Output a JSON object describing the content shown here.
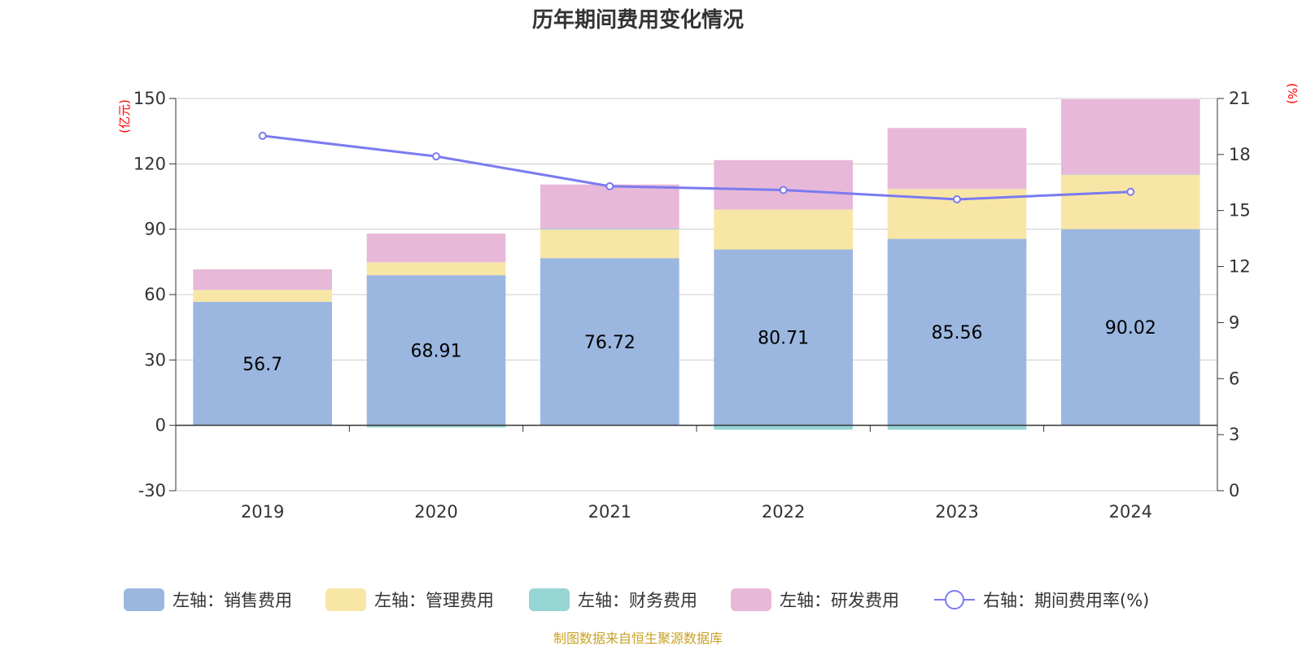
{
  "chart_data": {
    "type": "bar",
    "stacked": true,
    "title": "历年期间费用变化情况",
    "categories": [
      "2019",
      "2020",
      "2021",
      "2022",
      "2023",
      "2024"
    ],
    "series": [
      {
        "name": "左轴：销售费用",
        "axis": "left",
        "color": "#9bb7e0",
        "values": [
          56.7,
          68.91,
          76.72,
          80.71,
          85.56,
          90.02
        ],
        "show_labels": true
      },
      {
        "name": "左轴：管理费用",
        "axis": "left",
        "color": "#f8e6a6",
        "values": [
          5.4,
          5.9,
          13.1,
          18.3,
          22.9,
          24.9
        ]
      },
      {
        "name": "左轴：财务费用",
        "axis": "left",
        "color": "#97d5d5",
        "values": [
          0.1,
          -1.0,
          0.4,
          -2.0,
          -2.0,
          0.2
        ]
      },
      {
        "name": "左轴：研发费用",
        "axis": "left",
        "color": "#e8b8d8",
        "values": [
          9.4,
          13.2,
          20.3,
          22.7,
          28.0,
          34.5
        ]
      },
      {
        "name": "右轴：期间费用率(%)",
        "axis": "right",
        "type": "line",
        "color": "#7b7bf0",
        "values": [
          19.0,
          17.9,
          16.3,
          16.1,
          15.6,
          16.0
        ]
      }
    ],
    "left_axis": {
      "label": "(亿元)",
      "min": -30,
      "max": 150,
      "ticks": [
        -30,
        0,
        30,
        60,
        90,
        120,
        150
      ]
    },
    "right_axis": {
      "label": "(%)",
      "min": 0,
      "max": 21,
      "ticks": [
        0,
        3,
        6,
        9,
        12,
        15,
        18,
        21
      ]
    },
    "grid": true,
    "legend_position": "bottom"
  },
  "footer": {
    "source": "制图数据来自恒生聚源数据库"
  }
}
